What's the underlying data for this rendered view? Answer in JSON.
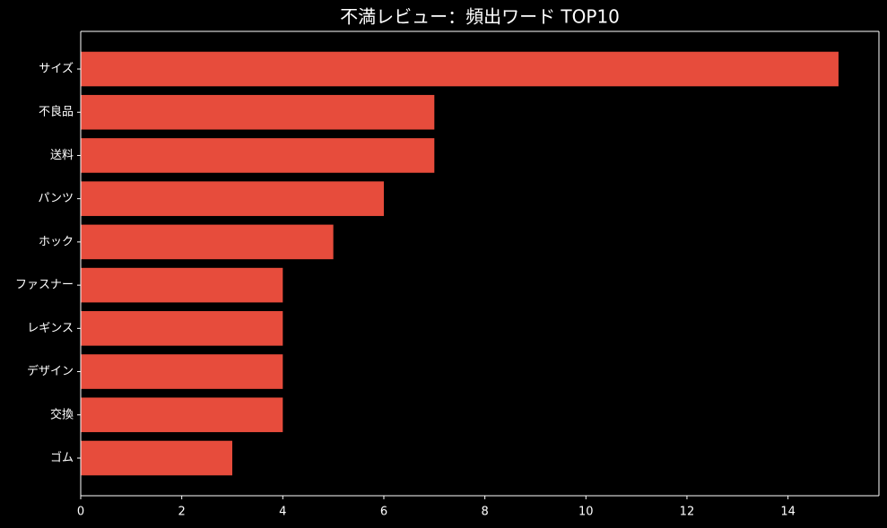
{
  "chart_data": {
    "type": "barh",
    "title": "不満レビュー：頻出ワード TOP10",
    "categories": [
      "サイズ",
      "不良品",
      "送料",
      "パンツ",
      "ホック",
      "ファスナー",
      "レギンス",
      "デザイン",
      "交換",
      "ゴム"
    ],
    "values": [
      15,
      7,
      7,
      6,
      5,
      4,
      4,
      4,
      4,
      3
    ],
    "color": "#e74c3c",
    "xlim": [
      0,
      15.8
    ],
    "xticks": [
      0,
      2,
      4,
      6,
      8,
      10,
      12,
      14
    ],
    "grid": false
  }
}
